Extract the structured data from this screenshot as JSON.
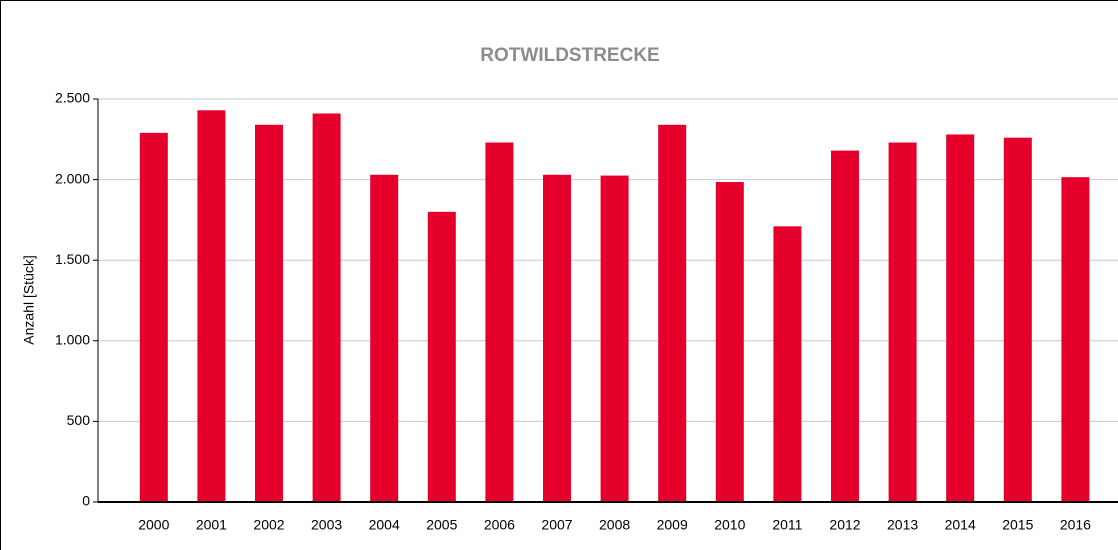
{
  "chart_data": {
    "type": "bar",
    "title": "ROTWILDSTRECKE",
    "y_label": "Anzahl [Stück]",
    "categories": [
      "2000",
      "2001",
      "2002",
      "2003",
      "2004",
      "2005",
      "2006",
      "2007",
      "2008",
      "2009",
      "2010",
      "2011",
      "2012",
      "2013",
      "2014",
      "2015",
      "2016"
    ],
    "values": [
      2290,
      2430,
      2340,
      2410,
      2030,
      1800,
      2230,
      2030,
      2025,
      2340,
      1985,
      1710,
      2180,
      2230,
      2280,
      2260,
      2015
    ],
    "color": "#e4002b",
    "ylim": [
      0,
      2500
    ],
    "yticks": [
      0,
      500,
      {
        "value": 1000,
        "label": "1.000"
      },
      {
        "value": 1500,
        "label": "1.500"
      },
      {
        "value": 2000,
        "label": "2.000"
      },
      {
        "value": 2500,
        "label": "2.500"
      }
    ],
    "grid": true
  }
}
